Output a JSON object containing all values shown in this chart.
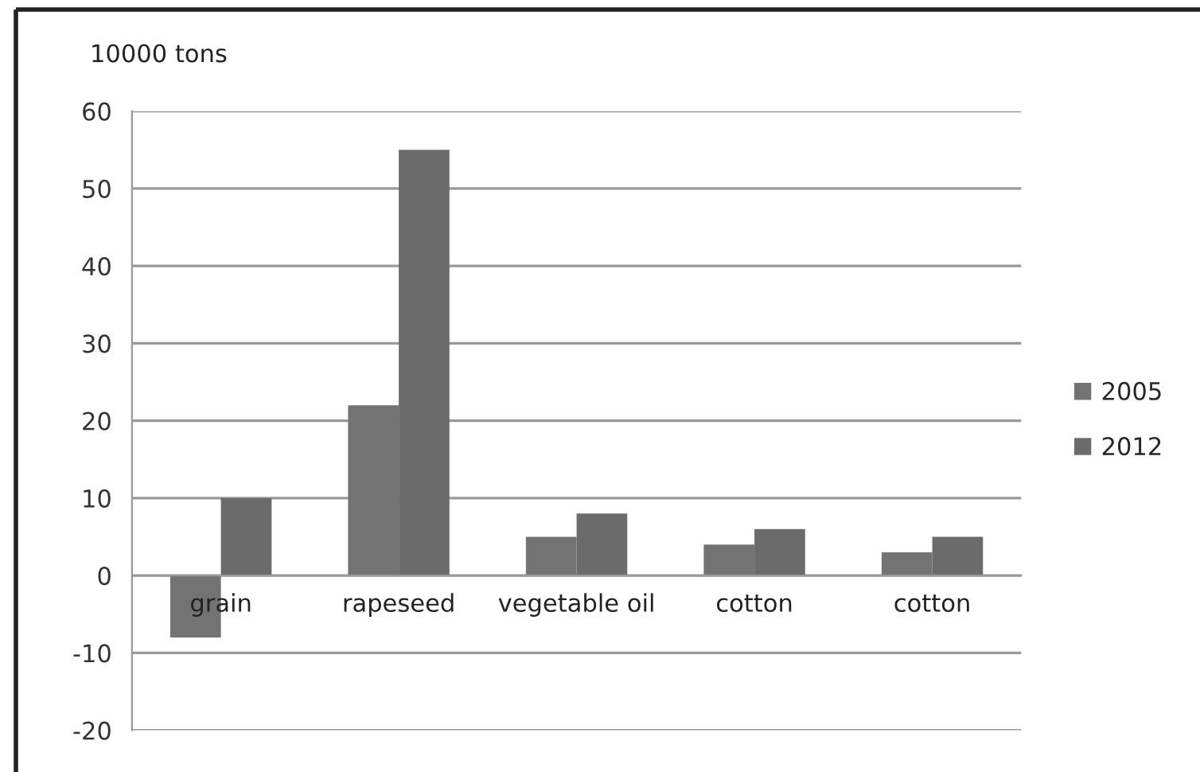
{
  "chart_data": {
    "type": "bar",
    "ylabel": "10000 tons",
    "categories": [
      "grain",
      "rapeseed",
      "vegetable oil",
      "cotton",
      "cotton"
    ],
    "series": [
      {
        "name": "2005",
        "color": "#737373",
        "values": [
          -8,
          22,
          5,
          4,
          3
        ]
      },
      {
        "name": "2012",
        "color": "#6b6b6b",
        "values": [
          10,
          55,
          8,
          6,
          5
        ]
      }
    ],
    "ylim": [
      -20,
      60
    ],
    "yticks": [
      -20,
      -10,
      0,
      10,
      20,
      30,
      40,
      50,
      60
    ],
    "grid": "y",
    "legend": "right"
  }
}
